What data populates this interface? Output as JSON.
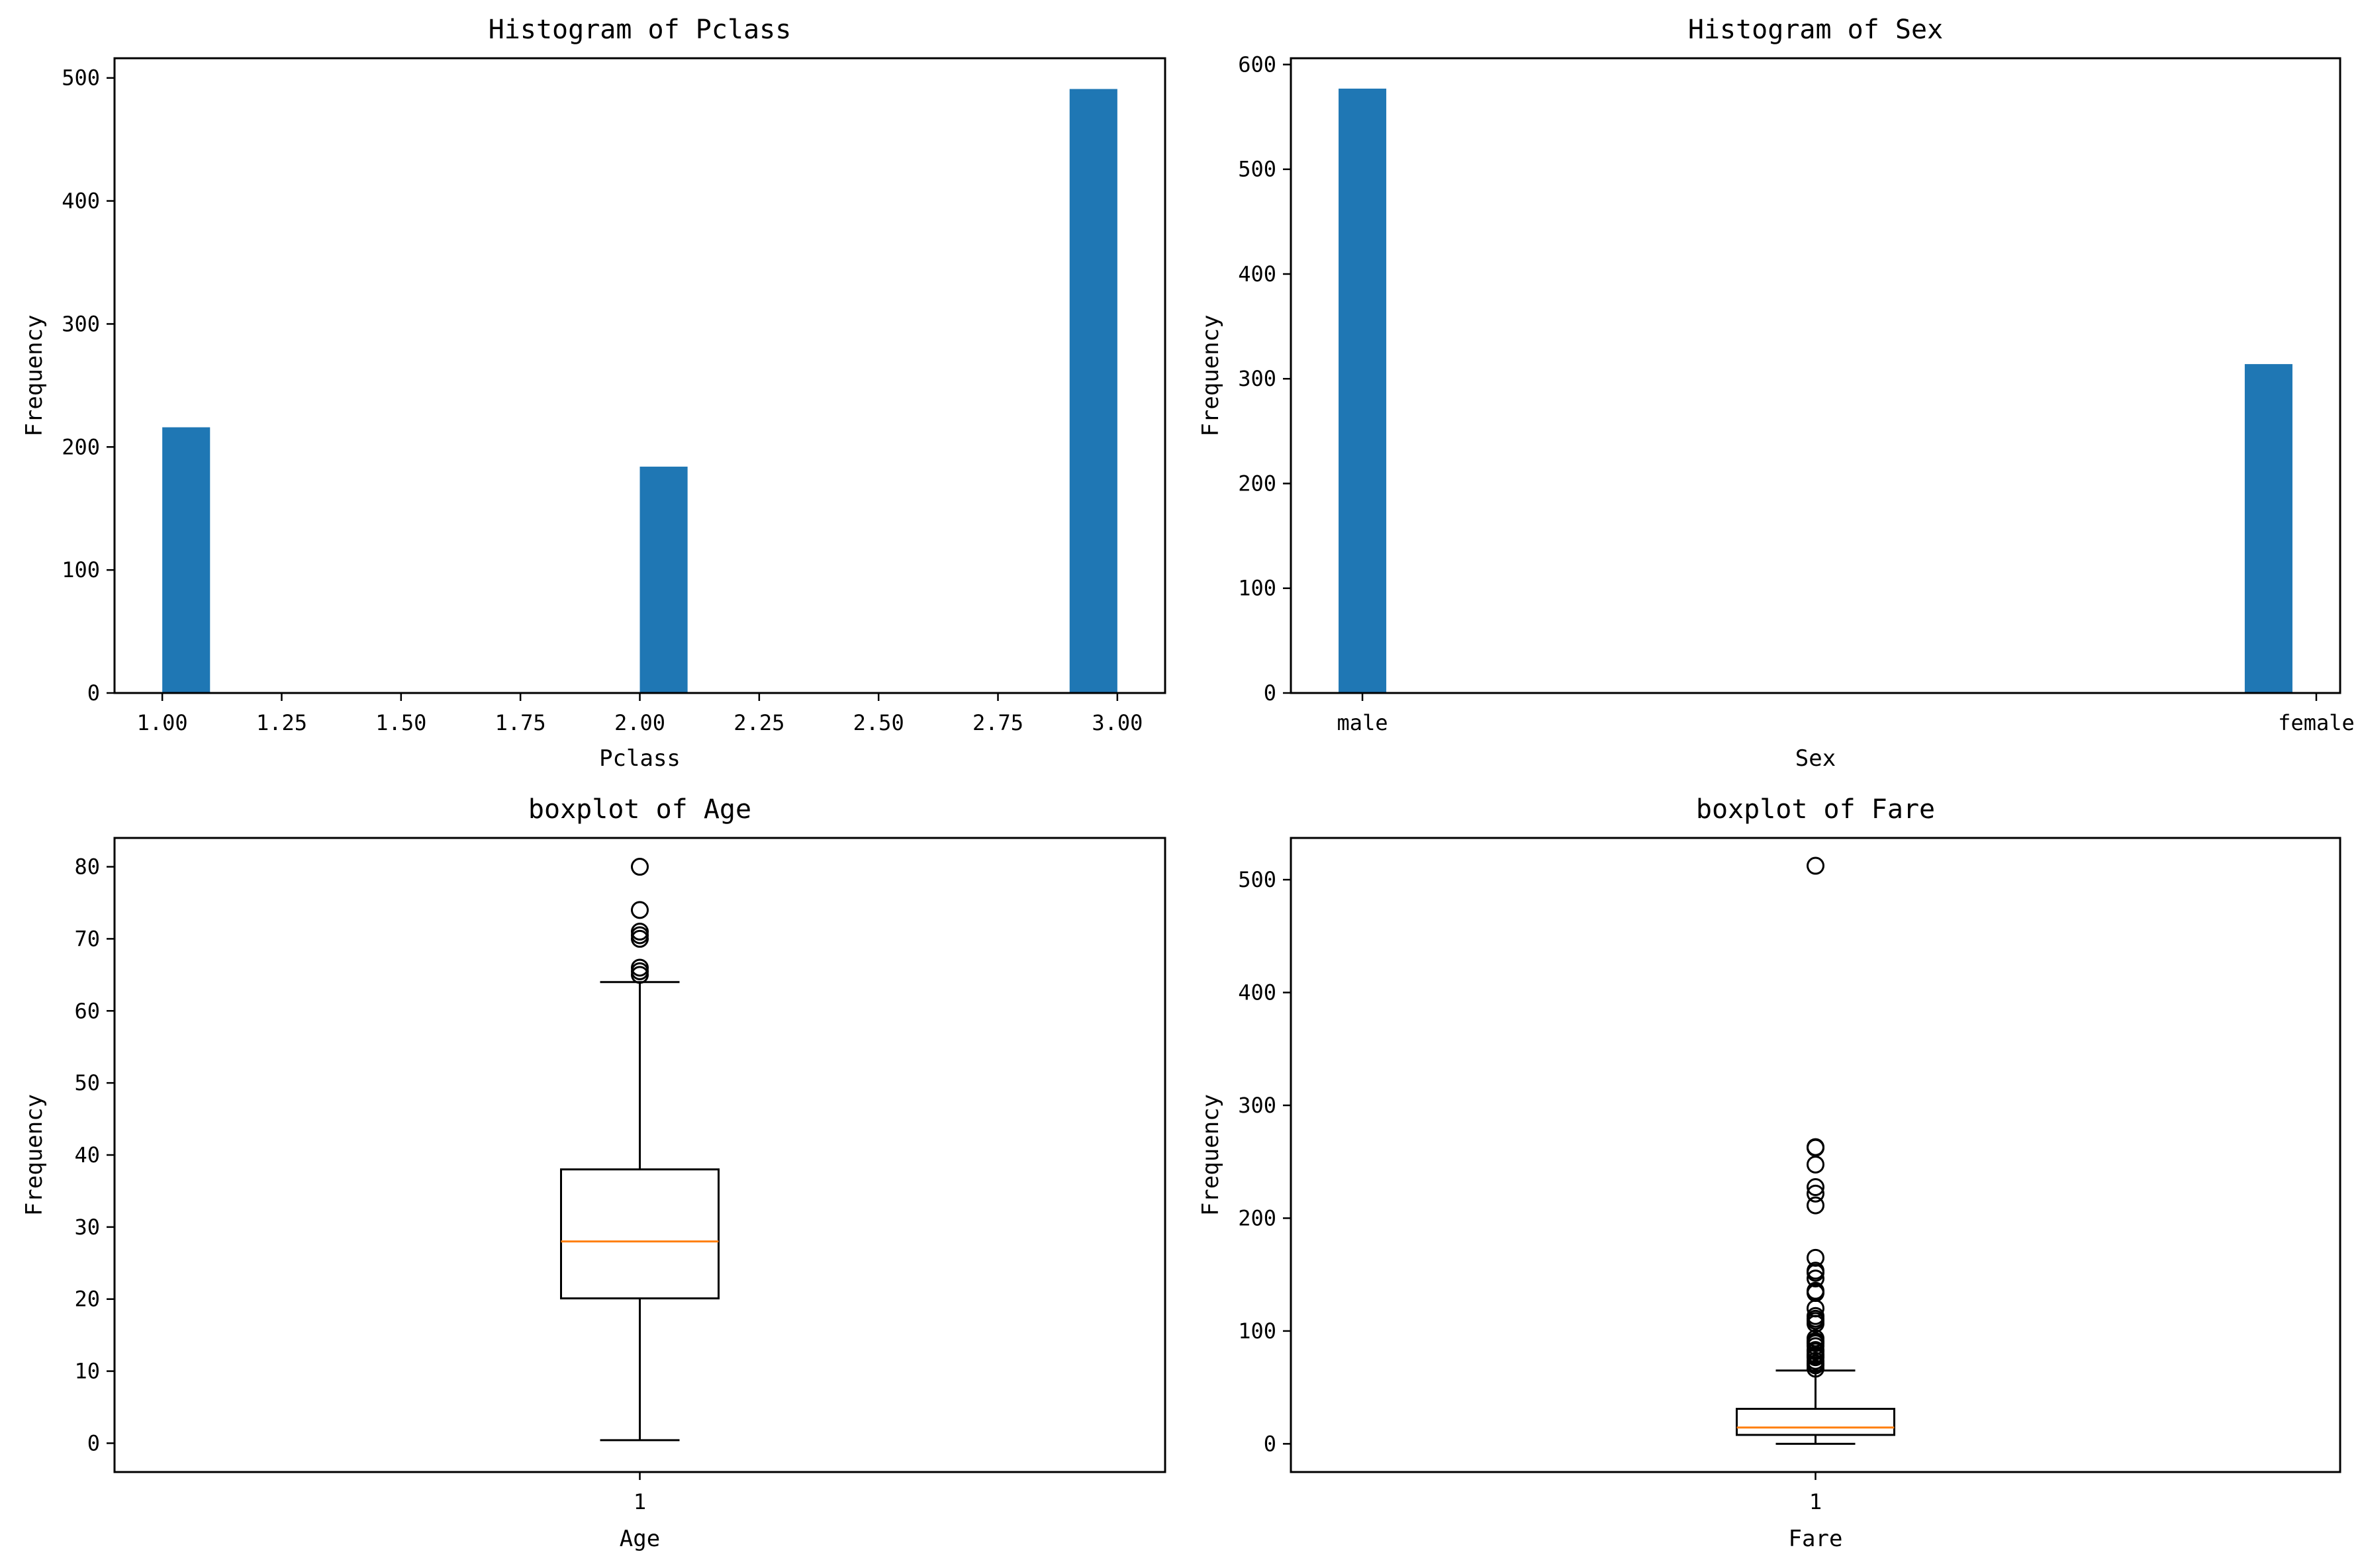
{
  "chart_data": [
    {
      "type": "bar",
      "kind": "histogram",
      "title": "Histogram of Pclass",
      "xlabel": "Pclass",
      "ylabel": "Frequency",
      "xlim": [
        0.9,
        3.1
      ],
      "ylim": [
        0,
        516
      ],
      "xticks": [
        1.0,
        1.25,
        1.5,
        1.75,
        2.0,
        2.25,
        2.5,
        2.75,
        3.0
      ],
      "xtick_labels": [
        "1.00",
        "1.25",
        "1.50",
        "1.75",
        "2.00",
        "2.25",
        "2.50",
        "2.75",
        "3.00"
      ],
      "yticks": [
        0,
        100,
        200,
        300,
        400,
        500
      ],
      "ytick_labels": [
        "0",
        "100",
        "200",
        "300",
        "400",
        "500"
      ],
      "bars": [
        {
          "x0": 1.0,
          "x1": 1.1,
          "value": 216
        },
        {
          "x0": 2.0,
          "x1": 2.1,
          "value": 184
        },
        {
          "x0": 2.9,
          "x1": 3.0,
          "value": 491
        }
      ],
      "color": "#1f77b4"
    },
    {
      "type": "bar",
      "kind": "histogram",
      "title": "Histogram of Sex",
      "xlabel": "Sex",
      "ylabel": "Frequency",
      "xlim": [
        -0.05,
        1.05
      ],
      "ylim": [
        0,
        606
      ],
      "xticks": [
        0,
        1
      ],
      "xtick_labels": [
        "male",
        "female"
      ],
      "yticks": [
        0,
        100,
        200,
        300,
        400,
        500,
        600
      ],
      "ytick_labels": [
        "0",
        "100",
        "200",
        "300",
        "400",
        "500",
        "600"
      ],
      "bars": [
        {
          "x0": 0.0,
          "x1": 0.05,
          "value": 577
        },
        {
          "x0": 0.95,
          "x1": 1.0,
          "value": 314
        }
      ],
      "color": "#1f77b4"
    },
    {
      "type": "boxplot",
      "title": "boxplot of Age",
      "xlabel": "Age",
      "ylabel": "Frequency",
      "xtick_labels": [
        "1"
      ],
      "ylim": [
        -4,
        84
      ],
      "yticks": [
        0,
        10,
        20,
        30,
        40,
        50,
        60,
        70,
        80
      ],
      "ytick_labels": [
        "0",
        "10",
        "20",
        "30",
        "40",
        "50",
        "60",
        "70",
        "80"
      ],
      "box": {
        "whisker_low": 0.42,
        "q1": 20.1,
        "median": 28.0,
        "q3": 38.0,
        "whisker_high": 64.0
      },
      "outliers": [
        65,
        65.5,
        66,
        70,
        70.5,
        71,
        74,
        80
      ],
      "median_color": "#ff7f0e"
    },
    {
      "type": "boxplot",
      "title": "boxplot of Fare",
      "xlabel": "Fare",
      "ylabel": "Frequency",
      "xtick_labels": [
        "1"
      ],
      "ylim": [
        -25,
        537
      ],
      "yticks": [
        0,
        100,
        200,
        300,
        400,
        500
      ],
      "ytick_labels": [
        "0",
        "100",
        "200",
        "300",
        "400",
        "500"
      ],
      "box": {
        "whisker_low": 0,
        "q1": 7.9,
        "median": 14.45,
        "q3": 31.0,
        "whisker_high": 65.0
      },
      "outliers": [
        66.6,
        69.55,
        71.28,
        73.5,
        76.73,
        77.29,
        78.85,
        79.2,
        81.86,
        83.16,
        86.5,
        89.1,
        90,
        91.08,
        93.5,
        106.4,
        108.9,
        110.88,
        113.28,
        120,
        133.65,
        134.5,
        135.63,
        146.52,
        151.55,
        153.46,
        164.87,
        211.34,
        221.78,
        227.53,
        247.52,
        262.38,
        263,
        512.33
      ],
      "median_color": "#ff7f0e"
    }
  ]
}
